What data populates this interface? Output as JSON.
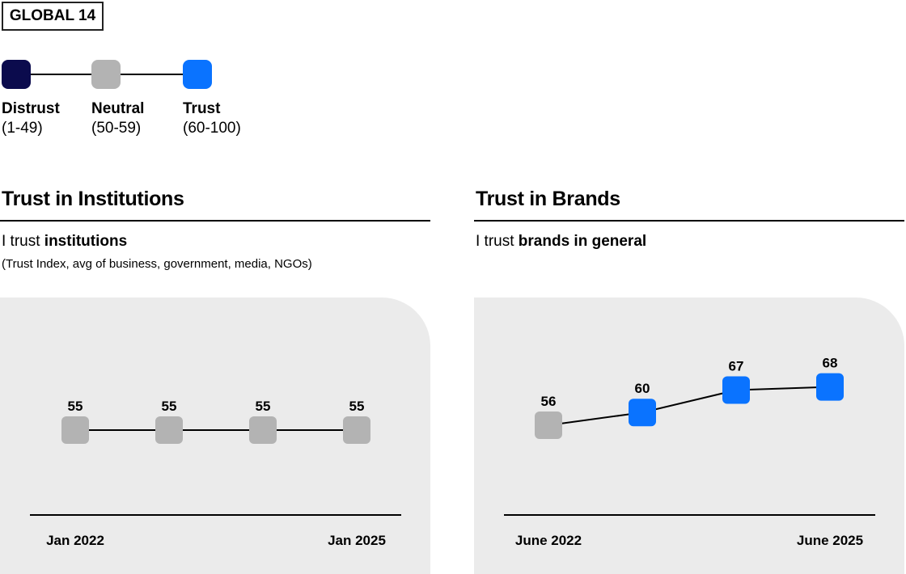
{
  "badge": "GLOBAL 14",
  "legend": [
    {
      "label": "Distrust",
      "range": "(1-49)",
      "color": "#0b0b4d"
    },
    {
      "label": "Neutral",
      "range": "(50-59)",
      "color": "#b3b3b3"
    },
    {
      "label": "Trust",
      "range": "(60-100)",
      "color": "#0a73ff"
    }
  ],
  "panels": [
    {
      "title": "Trust in Institutions",
      "question_prefix": "I trust ",
      "question_bold": "institutions",
      "note": "(Trust Index, avg of business, government, media, NGOs)"
    },
    {
      "title": "Trust in Brands",
      "question_prefix": "I trust ",
      "question_bold": "brands in general",
      "note": ""
    }
  ],
  "chart_data": [
    {
      "type": "line",
      "x_start_label": "Jan 2022",
      "x_end_label": "Jan 2025",
      "values": [
        55,
        55,
        55,
        55
      ],
      "grid": false
    },
    {
      "type": "line",
      "x_start_label": "June 2022",
      "x_end_label": "June 2025",
      "values": [
        56,
        60,
        67,
        68
      ],
      "grid": false
    }
  ]
}
